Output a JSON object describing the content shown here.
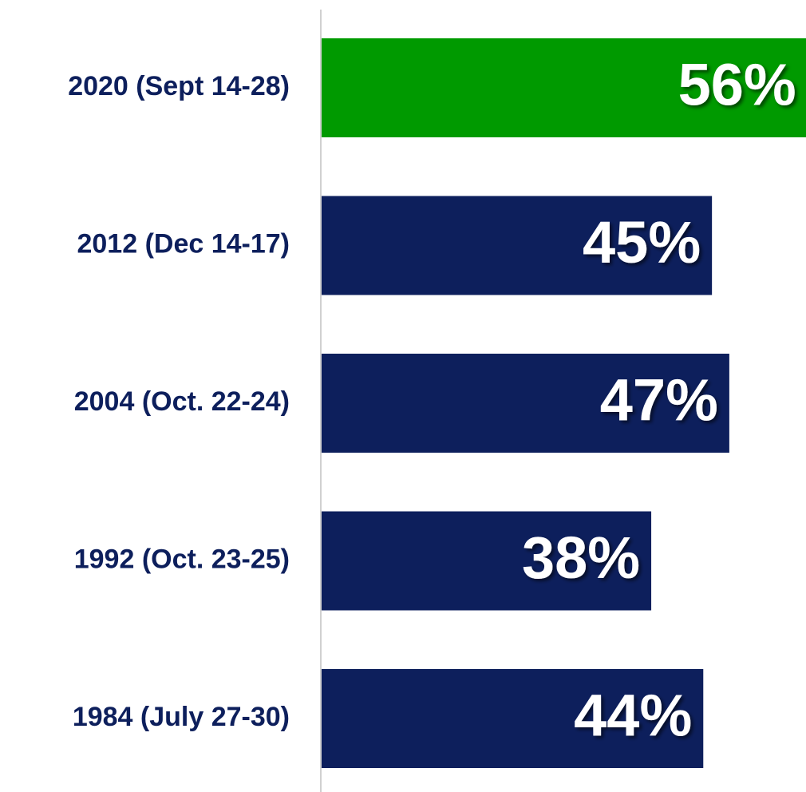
{
  "chart_data": {
    "type": "bar",
    "orientation": "horizontal",
    "categories": [
      "2020 (Sept 14-28)",
      "2012 (Dec 14-17)",
      "2004 (Oct. 22-24)",
      "1992 (Oct. 23-25)",
      "1984 (July 27-30)"
    ],
    "values": [
      56,
      45,
      47,
      38,
      44
    ],
    "value_labels": [
      "56%",
      "45%",
      "47%",
      "38%",
      "44%"
    ],
    "colors": [
      "#009a00",
      "#0d1f5c",
      "#0d1f5c",
      "#0d1f5c",
      "#0d1f5c"
    ]
  }
}
